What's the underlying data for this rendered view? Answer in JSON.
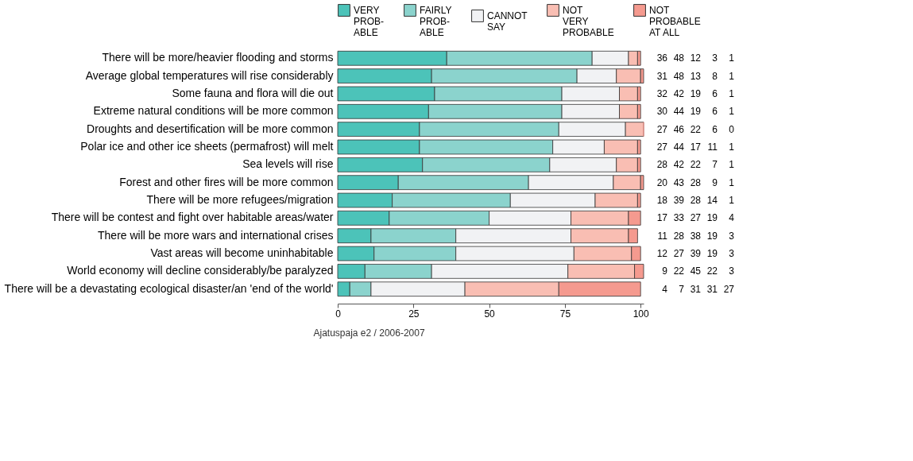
{
  "chart_data": {
    "type": "bar",
    "orientation": "horizontal",
    "stacked": true,
    "data_labels": true,
    "grid": false,
    "legend": "top",
    "categories": [
      "There will be more/heavier flooding and storms",
      "Average global temperatures will rise considerably",
      "Some fauna and flora will die out",
      "Extreme natural conditions will be more common",
      "Droughts and desertification will be more common",
      "Polar ice and other ice sheets (permafrost) will melt",
      "Sea levels will rise",
      "Forest and other fires will be more common",
      "There will be more refugees/migration",
      "There will be contest and fight over habitable areas/water",
      "There will be more wars and international crises",
      "Vast areas will become uninhabitable",
      "World economy will decline considerably/be paralyzed",
      "There will be a devastating ecological disaster/an 'end of the world'"
    ],
    "series": [
      {
        "name": "VERY\nPROB-\nABLE",
        "color": "#4cc3b9",
        "values": [
          36,
          31,
          32,
          30,
          27,
          27,
          28,
          20,
          18,
          17,
          11,
          12,
          9,
          4
        ]
      },
      {
        "name": "FAIRLY\nPROB-\nABLE",
        "color": "#8bd3cd",
        "values": [
          48,
          48,
          42,
          44,
          46,
          44,
          42,
          43,
          39,
          33,
          28,
          27,
          22,
          7
        ]
      },
      {
        "name": "CANNOT\nSAY",
        "color": "#f1f2f4",
        "values": [
          12,
          13,
          19,
          19,
          22,
          17,
          22,
          28,
          28,
          27,
          38,
          39,
          45,
          31
        ]
      },
      {
        "name": "NOT\nVERY\nPROBABLE",
        "color": "#f9beb3",
        "values": [
          3,
          8,
          6,
          6,
          6,
          11,
          7,
          9,
          14,
          19,
          19,
          19,
          22,
          31
        ]
      },
      {
        "name": "NOT\nPROBABLE\nAT ALL",
        "color": "#f59a8f",
        "values": [
          1,
          1,
          1,
          1,
          0,
          1,
          1,
          1,
          1,
          4,
          3,
          3,
          3,
          27
        ]
      }
    ],
    "xlim": [
      0,
      101
    ],
    "xticks": [
      0,
      25,
      50,
      75,
      100
    ],
    "annotations": [
      "Ajatuspaja e2 / 2006-2007"
    ]
  }
}
